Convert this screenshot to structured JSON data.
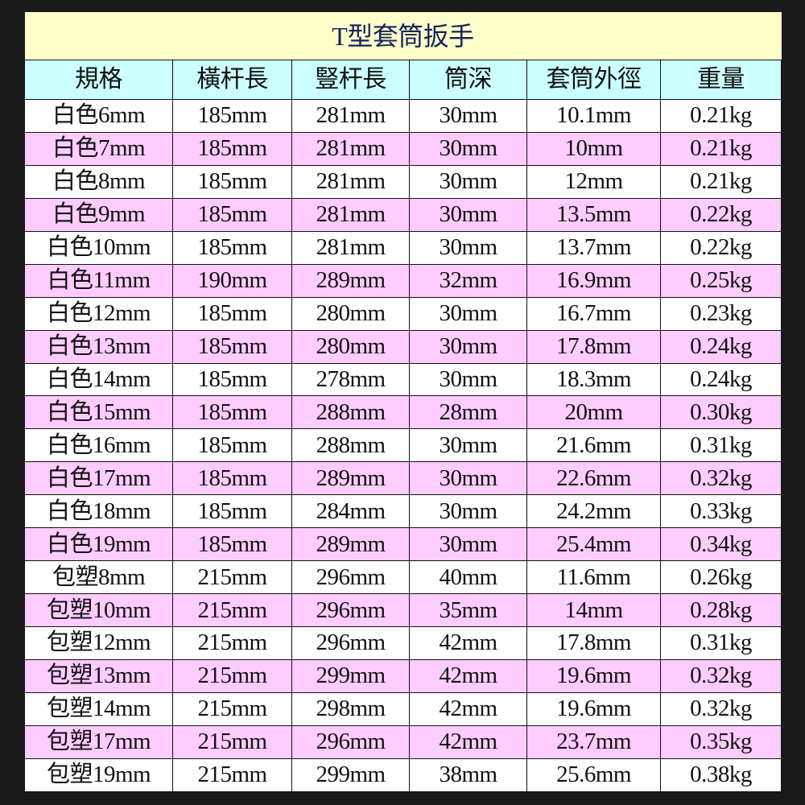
{
  "title": "T型套筒扳手",
  "colors": {
    "title_bg": "#ffffcc",
    "header_bg": "#ccffff",
    "row_alt_bg": "#ffccff",
    "row_bg": "#ffffff",
    "page_bg": "#1a1a1a"
  },
  "headers": [
    "規格",
    "橫杆長",
    "豎杆長",
    "筒深",
    "套筒外徑",
    "重量"
  ],
  "rows": [
    [
      "白色6mm",
      "185mm",
      "281mm",
      "30mm",
      "10.1mm",
      "0.21kg"
    ],
    [
      "白色7mm",
      "185mm",
      "281mm",
      "30mm",
      "10mm",
      "0.21kg"
    ],
    [
      "白色8mm",
      "185mm",
      "281mm",
      "30mm",
      "12mm",
      "0.21kg"
    ],
    [
      "白色9mm",
      "185mm",
      "281mm",
      "30mm",
      "13.5mm",
      "0.22kg"
    ],
    [
      "白色10mm",
      "185mm",
      "281mm",
      "30mm",
      "13.7mm",
      "0.22kg"
    ],
    [
      "白色11mm",
      "190mm",
      "289mm",
      "32mm",
      "16.9mm",
      "0.25kg"
    ],
    [
      "白色12mm",
      "185mm",
      "280mm",
      "30mm",
      "16.7mm",
      "0.23kg"
    ],
    [
      "白色13mm",
      "185mm",
      "280mm",
      "30mm",
      "17.8mm",
      "0.24kg"
    ],
    [
      "白色14mm",
      "185mm",
      "278mm",
      "30mm",
      "18.3mm",
      "0.24kg"
    ],
    [
      "白色15mm",
      "185mm",
      "288mm",
      "28mm",
      "20mm",
      "0.30kg"
    ],
    [
      "白色16mm",
      "185mm",
      "288mm",
      "30mm",
      "21.6mm",
      "0.31kg"
    ],
    [
      "白色17mm",
      "185mm",
      "289mm",
      "30mm",
      "22.6mm",
      "0.32kg"
    ],
    [
      "白色18mm",
      "185mm",
      "284mm",
      "30mm",
      "24.2mm",
      "0.33kg"
    ],
    [
      "白色19mm",
      "185mm",
      "289mm",
      "30mm",
      "25.4mm",
      "0.34kg"
    ],
    [
      "包塑8mm",
      "215mm",
      "296mm",
      "40mm",
      "11.6mm",
      "0.26kg"
    ],
    [
      "包塑10mm",
      "215mm",
      "296mm",
      "35mm",
      "14mm",
      "0.28kg"
    ],
    [
      "包塑12mm",
      "215mm",
      "296mm",
      "42mm",
      "17.8mm",
      "0.31kg"
    ],
    [
      "包塑13mm",
      "215mm",
      "299mm",
      "42mm",
      "19.6mm",
      "0.32kg"
    ],
    [
      "包塑14mm",
      "215mm",
      "298mm",
      "42mm",
      "19.6mm",
      "0.32kg"
    ],
    [
      "包塑17mm",
      "215mm",
      "296mm",
      "42mm",
      "23.7mm",
      "0.35kg"
    ],
    [
      "包塑19mm",
      "215mm",
      "299mm",
      "38mm",
      "25.6mm",
      "0.38kg"
    ]
  ]
}
